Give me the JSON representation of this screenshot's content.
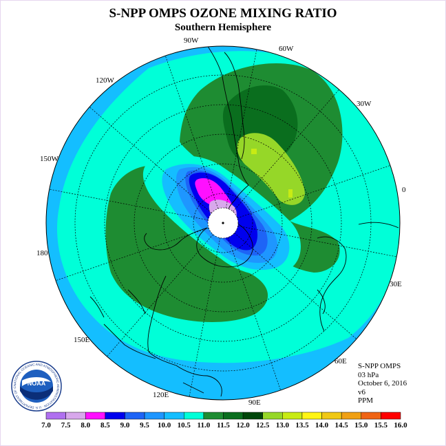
{
  "title": "S-NPP OMPS OZONE MIXING RATIO",
  "subtitle": "Southern Hemisphere",
  "longitude_labels": {
    "w90": "90W",
    "w60": "60W",
    "w30": "30W",
    "zero": "0",
    "e30": "30E",
    "e60": "60E",
    "e90": "90E",
    "e120": "120E",
    "e150": "150E",
    "lon180": "180",
    "w150": "150W",
    "w120": "120W"
  },
  "info": {
    "product": "S-NPP OMPS",
    "level": "03 hPa",
    "date": "October 6, 2016",
    "version": "v6",
    "units": "PPM"
  },
  "logo": {
    "text": "NOAA",
    "ring_text": "NATIONAL OCEANIC AND ATMOSPHERIC ADMINISTRATION · U.S. DEPARTMENT OF COMMERCE"
  },
  "colorbar": {
    "ticks": [
      "7.0",
      "7.5",
      "8.0",
      "8.5",
      "9.0",
      "9.5",
      "10.0",
      "10.5",
      "11.0",
      "11.5",
      "12.0",
      "12.5",
      "13.0",
      "13.5",
      "14.0",
      "14.5",
      "15.0",
      "15.5",
      "16.0"
    ],
    "colors": [
      "#b070f0",
      "#d8a8ec",
      "#ff10ff",
      "#0000ee",
      "#1e64f6",
      "#1e96ff",
      "#14beff",
      "#00ffd8",
      "#1e8c32",
      "#0a6e1e",
      "#00460a",
      "#96d728",
      "#c8eb14",
      "#fff514",
      "#f0c814",
      "#f0a014",
      "#f06414",
      "#ff0000",
      "#8c5028"
    ]
  },
  "map_colors": {
    "outer": "#14beff",
    "r105": "#00ffd8",
    "r110": "#1e8c32",
    "r115": "#0a6e1e",
    "r120": "#96d728",
    "r125": "#c8eb14",
    "l100": "#00ffd8",
    "l95": "#14beff",
    "l90": "#1e96ff",
    "l85": "#1e64f6",
    "l80": "#0000ee",
    "l75": "#ff10ff",
    "l70": "#d8a8ec"
  }
}
